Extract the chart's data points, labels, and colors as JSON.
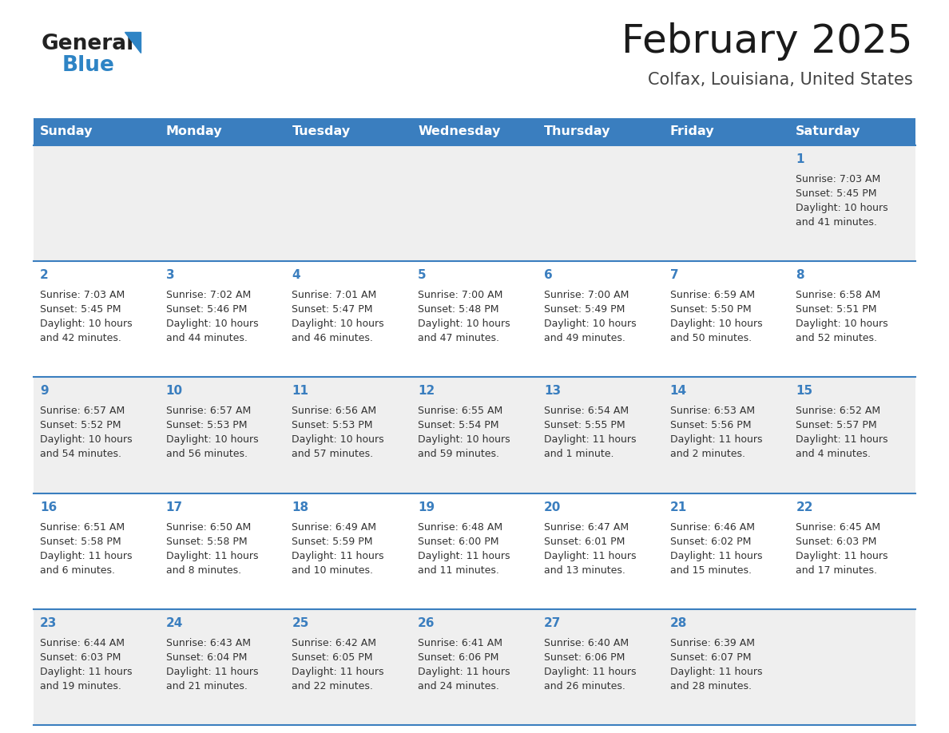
{
  "title": "February 2025",
  "subtitle": "Colfax, Louisiana, United States",
  "header_bg": "#3a7ebf",
  "header_text_color": "#ffffff",
  "cell_bg_odd": "#efefef",
  "cell_bg_even": "#ffffff",
  "day_number_color": "#3a7ebf",
  "text_color": "#333333",
  "separator_color": "#3a7ebf",
  "logo_general_color": "#222222",
  "logo_blue_color": "#2e84c5",
  "logo_triangle_color": "#2e84c5",
  "days_of_week": [
    "Sunday",
    "Monday",
    "Tuesday",
    "Wednesday",
    "Thursday",
    "Friday",
    "Saturday"
  ],
  "weeks": [
    [
      {
        "day": null,
        "sunrise": null,
        "sunset": null,
        "daylight_h": null,
        "daylight_m": null
      },
      {
        "day": null,
        "sunrise": null,
        "sunset": null,
        "daylight_h": null,
        "daylight_m": null
      },
      {
        "day": null,
        "sunrise": null,
        "sunset": null,
        "daylight_h": null,
        "daylight_m": null
      },
      {
        "day": null,
        "sunrise": null,
        "sunset": null,
        "daylight_h": null,
        "daylight_m": null
      },
      {
        "day": null,
        "sunrise": null,
        "sunset": null,
        "daylight_h": null,
        "daylight_m": null
      },
      {
        "day": null,
        "sunrise": null,
        "sunset": null,
        "daylight_h": null,
        "daylight_m": null
      },
      {
        "day": 1,
        "sunrise": "7:03 AM",
        "sunset": "5:45 PM",
        "daylight_h": "10 hours",
        "daylight_m": "41 minutes"
      }
    ],
    [
      {
        "day": 2,
        "sunrise": "7:03 AM",
        "sunset": "5:45 PM",
        "daylight_h": "10 hours",
        "daylight_m": "42 minutes"
      },
      {
        "day": 3,
        "sunrise": "7:02 AM",
        "sunset": "5:46 PM",
        "daylight_h": "10 hours",
        "daylight_m": "44 minutes"
      },
      {
        "day": 4,
        "sunrise": "7:01 AM",
        "sunset": "5:47 PM",
        "daylight_h": "10 hours",
        "daylight_m": "46 minutes"
      },
      {
        "day": 5,
        "sunrise": "7:00 AM",
        "sunset": "5:48 PM",
        "daylight_h": "10 hours",
        "daylight_m": "47 minutes"
      },
      {
        "day": 6,
        "sunrise": "7:00 AM",
        "sunset": "5:49 PM",
        "daylight_h": "10 hours",
        "daylight_m": "49 minutes"
      },
      {
        "day": 7,
        "sunrise": "6:59 AM",
        "sunset": "5:50 PM",
        "daylight_h": "10 hours",
        "daylight_m": "50 minutes"
      },
      {
        "day": 8,
        "sunrise": "6:58 AM",
        "sunset": "5:51 PM",
        "daylight_h": "10 hours",
        "daylight_m": "52 minutes"
      }
    ],
    [
      {
        "day": 9,
        "sunrise": "6:57 AM",
        "sunset": "5:52 PM",
        "daylight_h": "10 hours",
        "daylight_m": "54 minutes"
      },
      {
        "day": 10,
        "sunrise": "6:57 AM",
        "sunset": "5:53 PM",
        "daylight_h": "10 hours",
        "daylight_m": "56 minutes"
      },
      {
        "day": 11,
        "sunrise": "6:56 AM",
        "sunset": "5:53 PM",
        "daylight_h": "10 hours",
        "daylight_m": "57 minutes"
      },
      {
        "day": 12,
        "sunrise": "6:55 AM",
        "sunset": "5:54 PM",
        "daylight_h": "10 hours",
        "daylight_m": "59 minutes"
      },
      {
        "day": 13,
        "sunrise": "6:54 AM",
        "sunset": "5:55 PM",
        "daylight_h": "11 hours",
        "daylight_m": "1 minute"
      },
      {
        "day": 14,
        "sunrise": "6:53 AM",
        "sunset": "5:56 PM",
        "daylight_h": "11 hours",
        "daylight_m": "2 minutes"
      },
      {
        "day": 15,
        "sunrise": "6:52 AM",
        "sunset": "5:57 PM",
        "daylight_h": "11 hours",
        "daylight_m": "4 minutes"
      }
    ],
    [
      {
        "day": 16,
        "sunrise": "6:51 AM",
        "sunset": "5:58 PM",
        "daylight_h": "11 hours",
        "daylight_m": "6 minutes"
      },
      {
        "day": 17,
        "sunrise": "6:50 AM",
        "sunset": "5:58 PM",
        "daylight_h": "11 hours",
        "daylight_m": "8 minutes"
      },
      {
        "day": 18,
        "sunrise": "6:49 AM",
        "sunset": "5:59 PM",
        "daylight_h": "11 hours",
        "daylight_m": "10 minutes"
      },
      {
        "day": 19,
        "sunrise": "6:48 AM",
        "sunset": "6:00 PM",
        "daylight_h": "11 hours",
        "daylight_m": "11 minutes"
      },
      {
        "day": 20,
        "sunrise": "6:47 AM",
        "sunset": "6:01 PM",
        "daylight_h": "11 hours",
        "daylight_m": "13 minutes"
      },
      {
        "day": 21,
        "sunrise": "6:46 AM",
        "sunset": "6:02 PM",
        "daylight_h": "11 hours",
        "daylight_m": "15 minutes"
      },
      {
        "day": 22,
        "sunrise": "6:45 AM",
        "sunset": "6:03 PM",
        "daylight_h": "11 hours",
        "daylight_m": "17 minutes"
      }
    ],
    [
      {
        "day": 23,
        "sunrise": "6:44 AM",
        "sunset": "6:03 PM",
        "daylight_h": "11 hours",
        "daylight_m": "19 minutes"
      },
      {
        "day": 24,
        "sunrise": "6:43 AM",
        "sunset": "6:04 PM",
        "daylight_h": "11 hours",
        "daylight_m": "21 minutes"
      },
      {
        "day": 25,
        "sunrise": "6:42 AM",
        "sunset": "6:05 PM",
        "daylight_h": "11 hours",
        "daylight_m": "22 minutes"
      },
      {
        "day": 26,
        "sunrise": "6:41 AM",
        "sunset": "6:06 PM",
        "daylight_h": "11 hours",
        "daylight_m": "24 minutes"
      },
      {
        "day": 27,
        "sunrise": "6:40 AM",
        "sunset": "6:06 PM",
        "daylight_h": "11 hours",
        "daylight_m": "26 minutes"
      },
      {
        "day": 28,
        "sunrise": "6:39 AM",
        "sunset": "6:07 PM",
        "daylight_h": "11 hours",
        "daylight_m": "28 minutes"
      },
      {
        "day": null,
        "sunrise": null,
        "sunset": null,
        "daylight_h": null,
        "daylight_m": null
      }
    ]
  ]
}
